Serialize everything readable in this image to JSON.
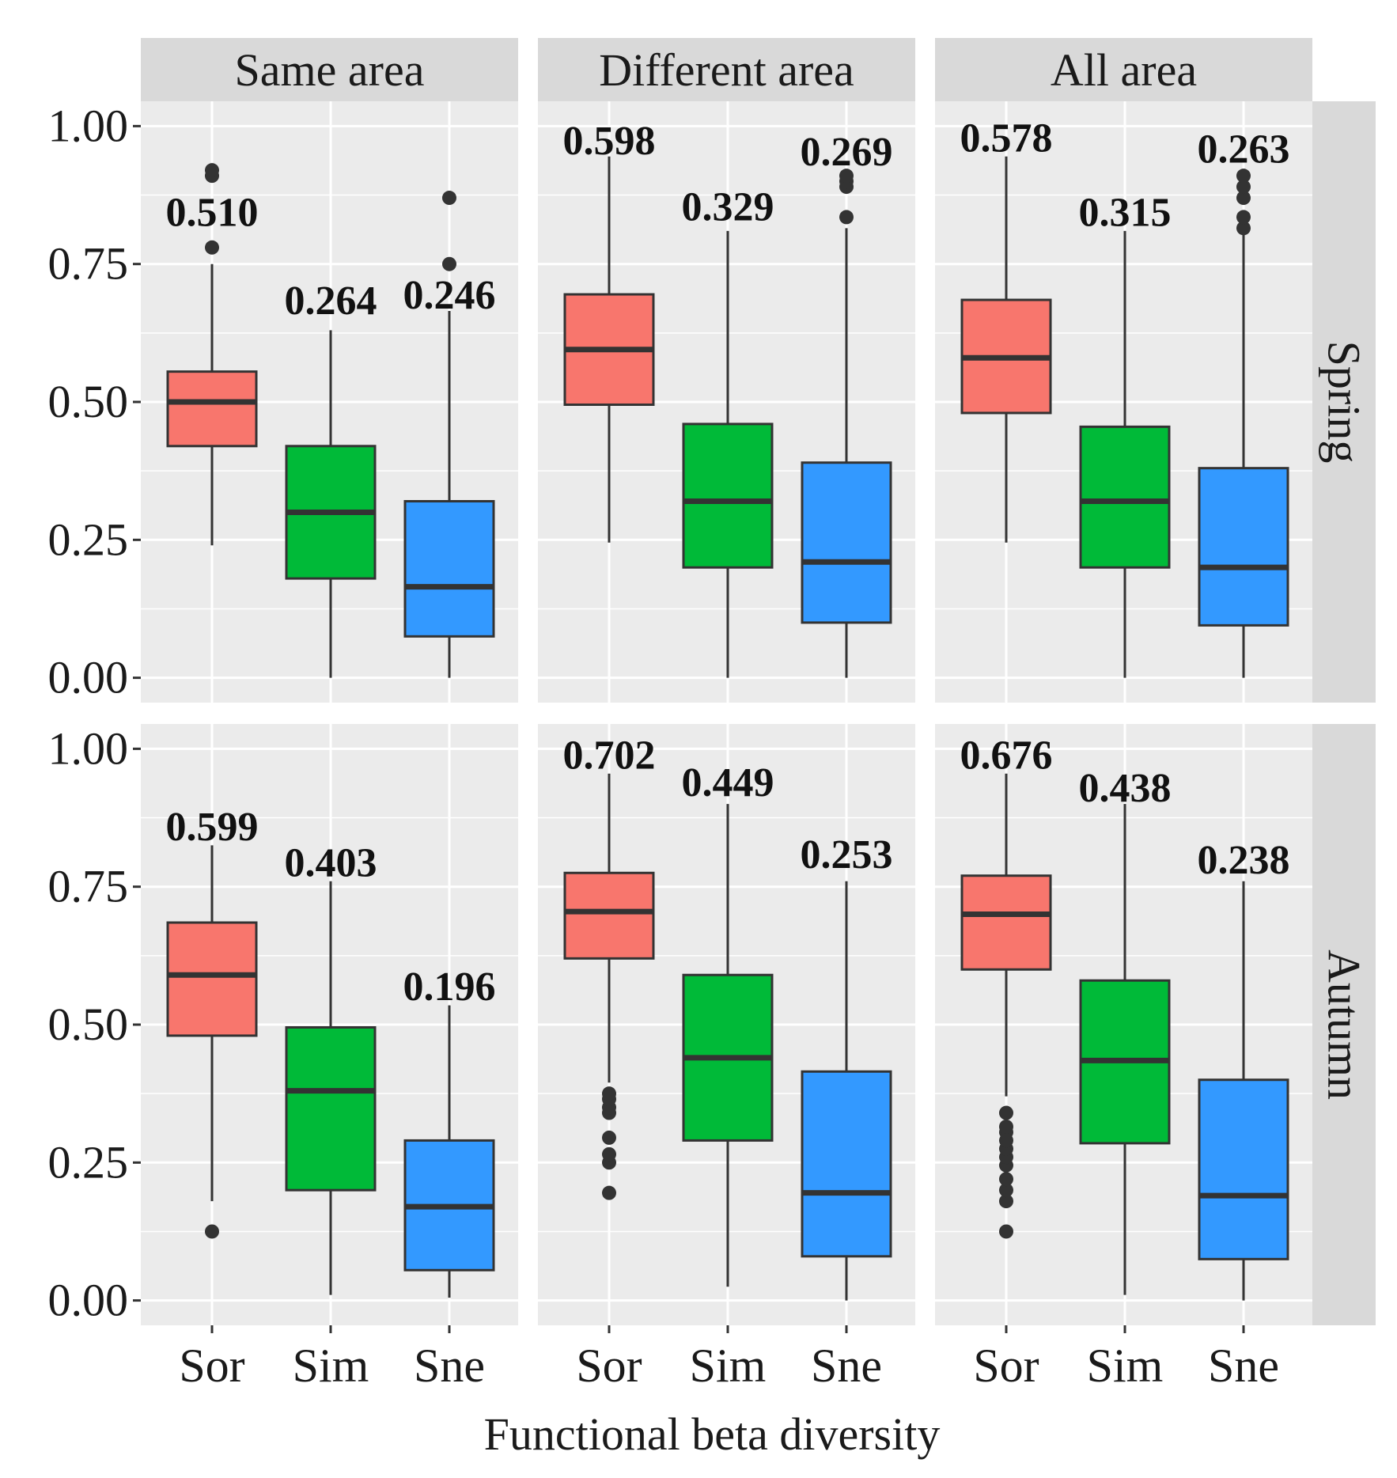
{
  "chart_data": {
    "type": "boxplot",
    "xlabel": "Functional beta diversity",
    "ylabel": "",
    "ylim": [
      0,
      1
    ],
    "y_ticks": [
      "0.00",
      "0.25",
      "0.50",
      "0.75",
      "1.00"
    ],
    "categories": [
      "Sor",
      "Sim",
      "Sne"
    ],
    "colors": {
      "Sor": "#F8766D",
      "Sim": "#00BA38",
      "Sne": "#3399FF"
    },
    "panel_bg": "#EBEBEB",
    "strip_bg": "#D9D9D9",
    "facet_cols": [
      "Same area",
      "Different area",
      "All area"
    ],
    "facet_rows": [
      "Spring",
      "Autumn"
    ],
    "panels": [
      {
        "row": "Spring",
        "col": "Same area",
        "boxes": [
          {
            "category": "Sor",
            "whisker_low": 0.24,
            "q1": 0.42,
            "median": 0.5,
            "q3": 0.555,
            "whisker_high": 0.75,
            "outliers": [
              0.78,
              0.91,
              0.92
            ],
            "label": "0.510",
            "label_y": 0.845
          },
          {
            "category": "Sim",
            "whisker_low": 0.0,
            "q1": 0.18,
            "median": 0.3,
            "q3": 0.42,
            "whisker_high": 0.63,
            "outliers": [],
            "label": "0.264",
            "label_y": 0.685
          },
          {
            "category": "Sne",
            "whisker_low": 0.0,
            "q1": 0.075,
            "median": 0.165,
            "q3": 0.32,
            "whisker_high": 0.665,
            "outliers": [
              0.75,
              0.87
            ],
            "label": "0.246",
            "label_y": 0.695
          }
        ]
      },
      {
        "row": "Spring",
        "col": "Different area",
        "boxes": [
          {
            "category": "Sor",
            "whisker_low": 0.245,
            "q1": 0.495,
            "median": 0.595,
            "q3": 0.695,
            "whisker_high": 0.945,
            "outliers": [],
            "label": "0.598",
            "label_y": 0.975
          },
          {
            "category": "Sim",
            "whisker_low": 0.0,
            "q1": 0.2,
            "median": 0.32,
            "q3": 0.46,
            "whisker_high": 0.81,
            "outliers": [],
            "label": "0.329",
            "label_y": 0.855
          },
          {
            "category": "Sne",
            "whisker_low": 0.0,
            "q1": 0.1,
            "median": 0.21,
            "q3": 0.39,
            "whisker_high": 0.815,
            "outliers": [
              0.835,
              0.89,
              0.9,
              0.91
            ],
            "label": "0.269",
            "label_y": 0.955
          }
        ]
      },
      {
        "row": "Spring",
        "col": "All area",
        "boxes": [
          {
            "category": "Sor",
            "whisker_low": 0.245,
            "q1": 0.48,
            "median": 0.58,
            "q3": 0.685,
            "whisker_high": 0.945,
            "outliers": [],
            "label": "0.578",
            "label_y": 0.98
          },
          {
            "category": "Sim",
            "whisker_low": 0.0,
            "q1": 0.2,
            "median": 0.32,
            "q3": 0.455,
            "whisker_high": 0.81,
            "outliers": [],
            "label": "0.315",
            "label_y": 0.845
          },
          {
            "category": "Sne",
            "whisker_low": 0.0,
            "q1": 0.095,
            "median": 0.2,
            "q3": 0.38,
            "whisker_high": 0.81,
            "outliers": [
              0.815,
              0.835,
              0.87,
              0.89,
              0.91
            ],
            "label": "0.263",
            "label_y": 0.96
          }
        ]
      },
      {
        "row": "Autumn",
        "col": "Same area",
        "boxes": [
          {
            "category": "Sor",
            "whisker_low": 0.18,
            "q1": 0.48,
            "median": 0.59,
            "q3": 0.685,
            "whisker_high": 0.825,
            "outliers": [
              0.125
            ],
            "label": "0.599",
            "label_y": 0.86
          },
          {
            "category": "Sim",
            "whisker_low": 0.01,
            "q1": 0.2,
            "median": 0.38,
            "q3": 0.495,
            "whisker_high": 0.76,
            "outliers": [],
            "label": "0.403",
            "label_y": 0.795
          },
          {
            "category": "Sne",
            "whisker_low": 0.005,
            "q1": 0.055,
            "median": 0.17,
            "q3": 0.29,
            "whisker_high": 0.535,
            "outliers": [],
            "label": "0.196",
            "label_y": 0.57
          }
        ]
      },
      {
        "row": "Autumn",
        "col": "Different area",
        "boxes": [
          {
            "category": "Sor",
            "whisker_low": 0.395,
            "q1": 0.62,
            "median": 0.705,
            "q3": 0.775,
            "whisker_high": 0.955,
            "outliers": [
              0.195,
              0.25,
              0.265,
              0.295,
              0.34,
              0.35,
              0.365,
              0.375
            ],
            "label": "0.702",
            "label_y": 0.99
          },
          {
            "category": "Sim",
            "whisker_low": 0.025,
            "q1": 0.29,
            "median": 0.44,
            "q3": 0.59,
            "whisker_high": 0.9,
            "outliers": [],
            "label": "0.449",
            "label_y": 0.94
          },
          {
            "category": "Sne",
            "whisker_low": 0.0,
            "q1": 0.08,
            "median": 0.195,
            "q3": 0.415,
            "whisker_high": 0.76,
            "outliers": [],
            "label": "0.253",
            "label_y": 0.81
          }
        ]
      },
      {
        "row": "Autumn",
        "col": "All area",
        "boxes": [
          {
            "category": "Sor",
            "whisker_low": 0.37,
            "q1": 0.6,
            "median": 0.7,
            "q3": 0.77,
            "whisker_high": 0.955,
            "outliers": [
              0.125,
              0.18,
              0.2,
              0.22,
              0.245,
              0.26,
              0.275,
              0.29,
              0.305,
              0.315,
              0.34
            ],
            "label": "0.676",
            "label_y": 0.99
          },
          {
            "category": "Sim",
            "whisker_low": 0.01,
            "q1": 0.285,
            "median": 0.435,
            "q3": 0.58,
            "whisker_high": 0.9,
            "outliers": [],
            "label": "0.438",
            "label_y": 0.93
          },
          {
            "category": "Sne",
            "whisker_low": 0.0,
            "q1": 0.075,
            "median": 0.19,
            "q3": 0.4,
            "whisker_high": 0.76,
            "outliers": [],
            "label": "0.238",
            "label_y": 0.8
          }
        ]
      }
    ]
  }
}
